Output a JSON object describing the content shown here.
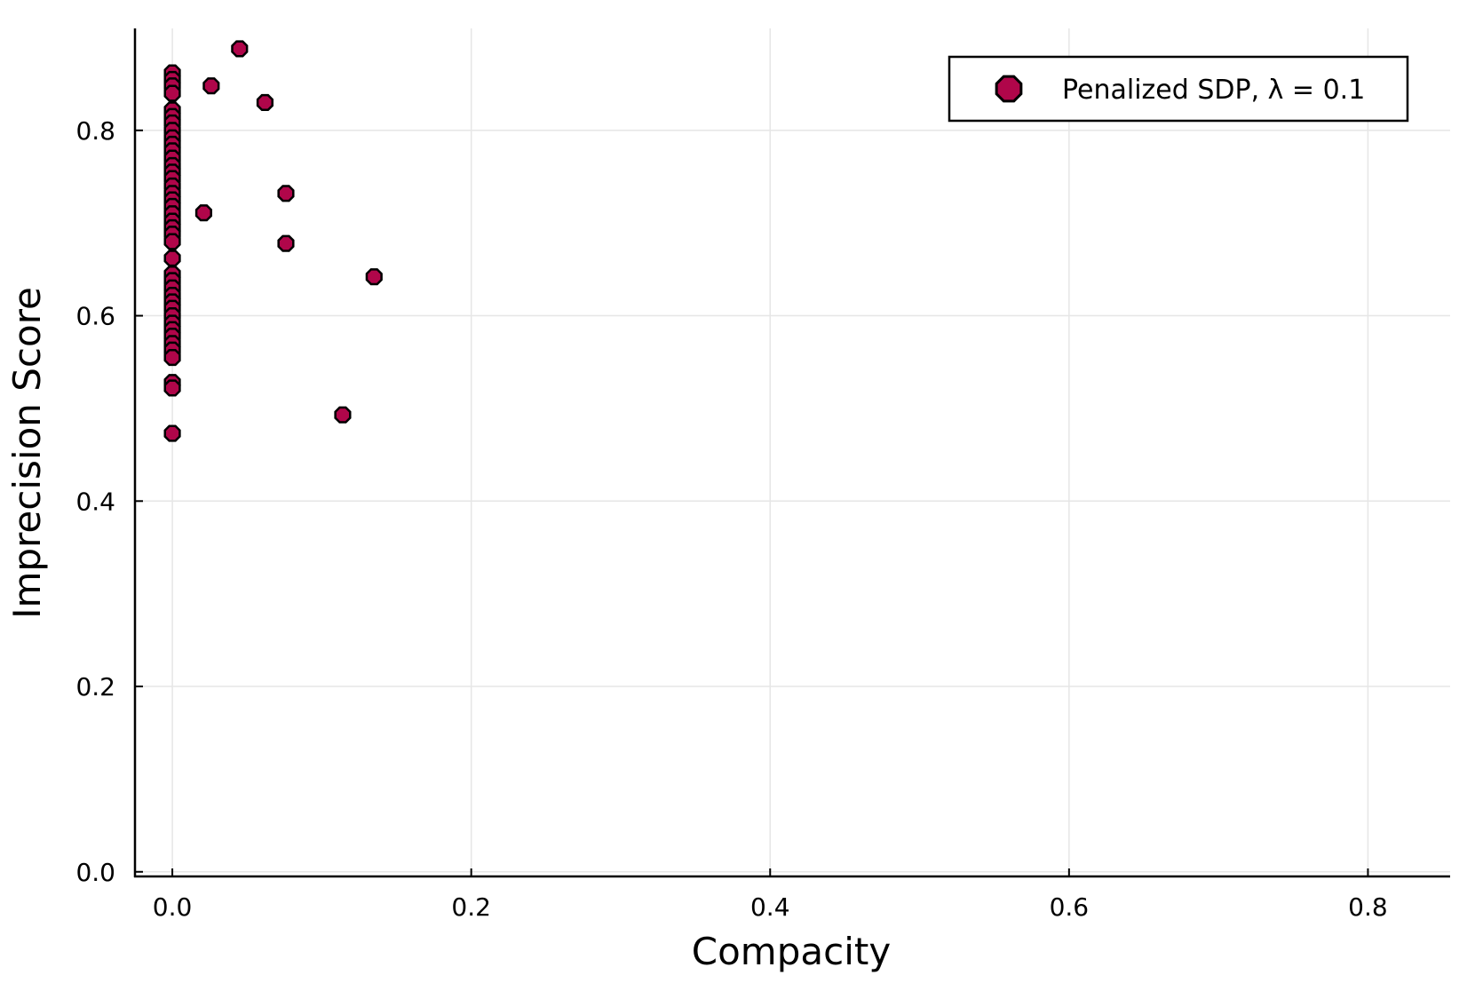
{
  "chart_data": {
    "type": "scatter",
    "title": "",
    "xlabel": "Compacity",
    "ylabel": "Imprecision Score",
    "xlim": [
      -0.025,
      0.855
    ],
    "ylim": [
      -0.005,
      0.91
    ],
    "xticks": [
      0.0,
      0.2,
      0.4,
      0.6,
      0.8
    ],
    "xtick_labels": [
      "0.0",
      "0.2",
      "0.4",
      "0.6",
      "0.8"
    ],
    "yticks": [
      0.0,
      0.2,
      0.4,
      0.6,
      0.8
    ],
    "ytick_labels": [
      "0.0",
      "0.2",
      "0.4",
      "0.6",
      "0.8"
    ],
    "grid": true,
    "legend_position": "top-right",
    "series": [
      {
        "name": "Penalized SDP, λ = 0.1",
        "color": "#b0064a",
        "points": [
          {
            "x": 0.0,
            "y": 0.862
          },
          {
            "x": 0.0,
            "y": 0.855
          },
          {
            "x": 0.0,
            "y": 0.848
          },
          {
            "x": 0.0,
            "y": 0.84
          },
          {
            "x": 0.0,
            "y": 0.822
          },
          {
            "x": 0.0,
            "y": 0.815
          },
          {
            "x": 0.0,
            "y": 0.808
          },
          {
            "x": 0.0,
            "y": 0.8
          },
          {
            "x": 0.0,
            "y": 0.792
          },
          {
            "x": 0.0,
            "y": 0.785
          },
          {
            "x": 0.0,
            "y": 0.778
          },
          {
            "x": 0.0,
            "y": 0.77
          },
          {
            "x": 0.0,
            "y": 0.762
          },
          {
            "x": 0.0,
            "y": 0.755
          },
          {
            "x": 0.0,
            "y": 0.748
          },
          {
            "x": 0.0,
            "y": 0.74
          },
          {
            "x": 0.0,
            "y": 0.732
          },
          {
            "x": 0.0,
            "y": 0.725
          },
          {
            "x": 0.0,
            "y": 0.718
          },
          {
            "x": 0.0,
            "y": 0.71
          },
          {
            "x": 0.0,
            "y": 0.702
          },
          {
            "x": 0.0,
            "y": 0.695
          },
          {
            "x": 0.0,
            "y": 0.688
          },
          {
            "x": 0.0,
            "y": 0.68
          },
          {
            "x": 0.0,
            "y": 0.662
          },
          {
            "x": 0.0,
            "y": 0.645
          },
          {
            "x": 0.0,
            "y": 0.638
          },
          {
            "x": 0.0,
            "y": 0.63
          },
          {
            "x": 0.0,
            "y": 0.622
          },
          {
            "x": 0.0,
            "y": 0.615
          },
          {
            "x": 0.0,
            "y": 0.608
          },
          {
            "x": 0.0,
            "y": 0.6
          },
          {
            "x": 0.0,
            "y": 0.592
          },
          {
            "x": 0.0,
            "y": 0.585
          },
          {
            "x": 0.0,
            "y": 0.578
          },
          {
            "x": 0.0,
            "y": 0.57
          },
          {
            "x": 0.0,
            "y": 0.563
          },
          {
            "x": 0.0,
            "y": 0.555
          },
          {
            "x": 0.0,
            "y": 0.528
          },
          {
            "x": 0.0,
            "y": 0.522
          },
          {
            "x": 0.0,
            "y": 0.473
          },
          {
            "x": 0.045,
            "y": 0.888
          },
          {
            "x": 0.026,
            "y": 0.848
          },
          {
            "x": 0.062,
            "y": 0.83
          },
          {
            "x": 0.076,
            "y": 0.732
          },
          {
            "x": 0.021,
            "y": 0.711
          },
          {
            "x": 0.076,
            "y": 0.678
          },
          {
            "x": 0.135,
            "y": 0.642
          },
          {
            "x": 0.114,
            "y": 0.493
          }
        ]
      }
    ]
  }
}
